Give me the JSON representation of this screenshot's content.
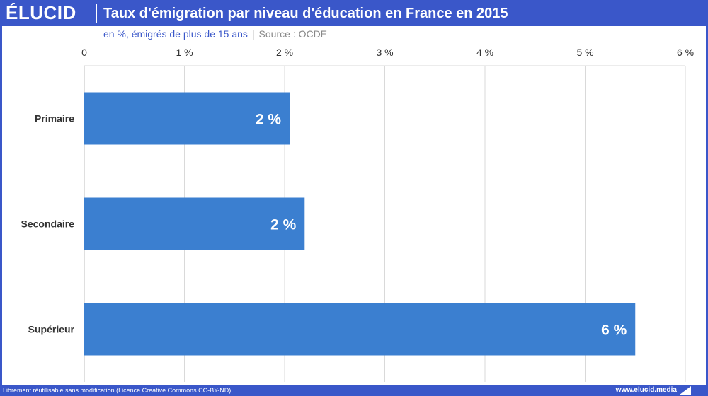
{
  "header": {
    "logo": "ÉLUCID",
    "title": "Taux d'émigration par niveau d'éducation en France en 2015",
    "subtitle": "en %, émigrés de plus de 15 ans",
    "separator": "|",
    "source": "Source : OCDE"
  },
  "footer": {
    "license": "Librement réutilisable sans modification (Licence Creative Commons CC-BY-ND)",
    "site": "www.elucid.media"
  },
  "colors": {
    "brand": "#3a57c9",
    "bar": "#3b7fd0",
    "grid": "#d9d9d9",
    "axis_text": "#333333",
    "bar_label": "#ffffff"
  },
  "chart_data": {
    "type": "bar",
    "orientation": "horizontal",
    "categories": [
      "Primaire",
      "Secondaire",
      "Supérieur"
    ],
    "values": [
      2.05,
      2.2,
      5.5
    ],
    "value_labels": [
      "2 %",
      "2 %",
      "6 %"
    ],
    "xlim": [
      0,
      6
    ],
    "x_ticks": [
      0,
      1,
      2,
      3,
      4,
      5,
      6
    ],
    "x_tick_labels": [
      "0",
      "1 %",
      "2 %",
      "3 %",
      "4 %",
      "5 %",
      "6 %"
    ],
    "x_axis_position": "top",
    "grid": true,
    "legend": "none"
  }
}
